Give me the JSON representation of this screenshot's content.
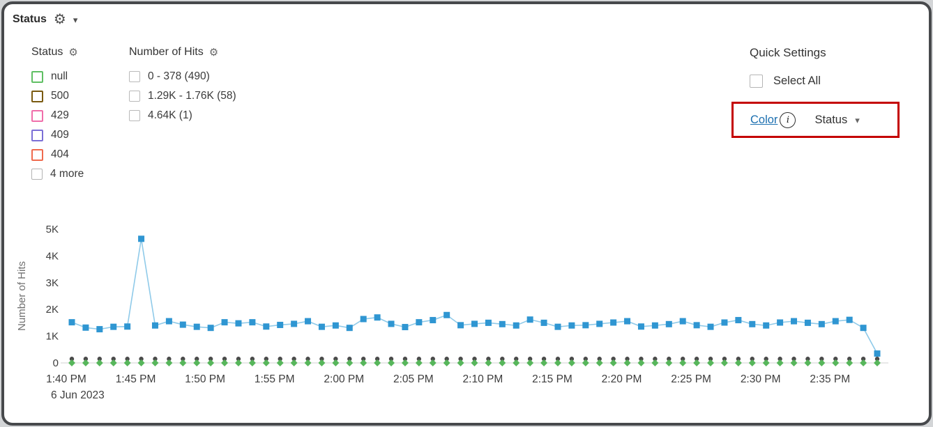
{
  "panel": {
    "title": "Status"
  },
  "filters": {
    "status": {
      "title": "Status",
      "items": [
        {
          "label": "null",
          "color": "#5fbf63"
        },
        {
          "label": "500",
          "color": "#7a5a10"
        },
        {
          "label": "429",
          "color": "#f06eaa"
        },
        {
          "label": "409",
          "color": "#7b6fd6"
        },
        {
          "label": "404",
          "color": "#ef6a4e"
        },
        {
          "label": "4 more",
          "color": "#b3b3b3"
        }
      ]
    },
    "hits": {
      "title": "Number of Hits",
      "items": [
        {
          "label": "0 - 378 (490)"
        },
        {
          "label": "1.29K - 1.76K (58)"
        },
        {
          "label": "4.64K (1)"
        }
      ]
    }
  },
  "quick_settings": {
    "title": "Quick Settings",
    "select_all_label": "Select All",
    "color_label": "Color",
    "dropdown_value": "Status",
    "highlight_color": "#c40000",
    "link_color": "#1b6fb0"
  },
  "chart_data": {
    "type": "line",
    "title": "",
    "xlabel": "",
    "ylabel": "Number of Hits",
    "date_label": "6 Jun 2023",
    "ylim": [
      0,
      5000
    ],
    "grid": false,
    "legend": "none",
    "y_ticks": [
      {
        "v": 0,
        "label": "0"
      },
      {
        "v": 1000,
        "label": "1K"
      },
      {
        "v": 2000,
        "label": "2K"
      },
      {
        "v": 3000,
        "label": "3K"
      },
      {
        "v": 4000,
        "label": "4K"
      },
      {
        "v": 5000,
        "label": "5K"
      }
    ],
    "x_tick_labels": [
      "1:40 PM",
      "1:45 PM",
      "1:50 PM",
      "1:55 PM",
      "2:00 PM",
      "2:05 PM",
      "2:10 PM",
      "2:15 PM",
      "2:20 PM",
      "2:25 PM",
      "2:30 PM",
      "2:35 PM"
    ],
    "x_tick_every": 5,
    "x_start": "1:40 PM",
    "x_interval_minutes": 1,
    "series": [
      {
        "name": "blue-squares-hits",
        "marker": "square",
        "line": true,
        "color": "#2f96d2",
        "line_color": "#8fcae9",
        "values": [
          1520,
          1320,
          1260,
          1350,
          1360,
          4640,
          1400,
          1560,
          1430,
          1350,
          1310,
          1520,
          1480,
          1520,
          1360,
          1420,
          1460,
          1560,
          1350,
          1400,
          1310,
          1640,
          1700,
          1460,
          1340,
          1520,
          1600,
          1790,
          1410,
          1460,
          1500,
          1450,
          1400,
          1620,
          1500,
          1350,
          1400,
          1410,
          1460,
          1510,
          1560,
          1360,
          1400,
          1450,
          1560,
          1410,
          1350,
          1510,
          1600,
          1450,
          1400,
          1510,
          1560,
          1500,
          1450,
          1560,
          1610,
          1310,
          350
        ]
      },
      {
        "name": "dark-dots-low-counts",
        "marker": "circle",
        "line": false,
        "color": "#4a4a4a",
        "values": [
          150,
          150,
          150,
          150,
          150,
          150,
          150,
          150,
          150,
          150,
          150,
          150,
          150,
          150,
          150,
          150,
          150,
          150,
          150,
          150,
          150,
          150,
          150,
          150,
          150,
          150,
          150,
          150,
          150,
          150,
          150,
          150,
          150,
          150,
          150,
          150,
          150,
          150,
          150,
          150,
          150,
          150,
          150,
          150,
          150,
          150,
          150,
          150,
          150,
          150,
          150,
          150,
          150,
          150,
          150,
          150,
          150,
          150,
          150
        ]
      },
      {
        "name": "green-diamonds-null",
        "marker": "diamond",
        "line": false,
        "color": "#57b65b",
        "values": [
          0,
          0,
          0,
          0,
          0,
          0,
          0,
          0,
          0,
          0,
          0,
          0,
          0,
          0,
          0,
          0,
          0,
          0,
          0,
          0,
          0,
          0,
          0,
          0,
          0,
          0,
          0,
          0,
          0,
          0,
          0,
          0,
          0,
          0,
          0,
          0,
          0,
          0,
          0,
          0,
          0,
          0,
          0,
          0,
          0,
          0,
          0,
          0,
          0,
          0,
          0,
          0,
          0,
          0,
          0,
          0,
          0,
          0,
          0
        ]
      }
    ]
  }
}
